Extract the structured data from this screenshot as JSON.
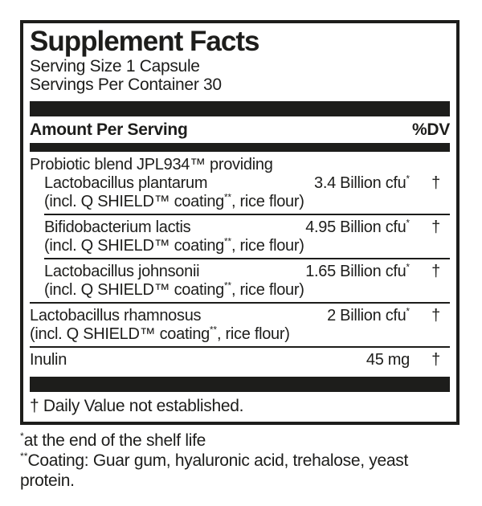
{
  "colors": {
    "ink": "#1d1d1b",
    "background": "#ffffff"
  },
  "panel": {
    "title": "Supplement Facts",
    "serving_size": "Serving Size 1 Capsule",
    "servings_per_container": "Servings Per Container 30",
    "columns": {
      "amount_header": "Amount Per Serving",
      "dv_header": "%DV"
    },
    "rows": [
      {
        "name": "Probiotic blend JPL934™ providing",
        "amount": "",
        "dv": "",
        "indent": false,
        "sub": "",
        "rule": "none"
      },
      {
        "name": "Lactobacillus plantarum",
        "amount": "3.4 Billion cfu*",
        "dv": "†",
        "indent": true,
        "sub": "(incl. Q SHIELD™ coating**, rice flour)",
        "rule": "indent"
      },
      {
        "name": "Bifidobacterium lactis",
        "amount": "4.95 Billion cfu*",
        "dv": "†",
        "indent": true,
        "sub": "(incl. Q SHIELD™ coating**, rice flour)",
        "rule": "indent"
      },
      {
        "name": "Lactobacillus johnsonii",
        "amount": "1.65 Billion cfu*",
        "dv": "†",
        "indent": true,
        "sub": "(incl. Q SHIELD™ coating**, rice flour)",
        "rule": "full"
      },
      {
        "name": "Lactobacillus rhamnosus",
        "amount": "2 Billion cfu*",
        "dv": "†",
        "indent": false,
        "sub": "(incl. Q SHIELD™ coating**, rice flour)",
        "rule": "full"
      },
      {
        "name": "Inulin",
        "amount": "45 mg",
        "dv": "†",
        "indent": false,
        "sub": "",
        "rule": "none"
      }
    ],
    "dv_note": "† Daily Value not established."
  },
  "footnotes": [
    "*at the end of the shelf life",
    "**Coating: Guar gum, hyaluronic acid, trehalose, yeast protein."
  ]
}
